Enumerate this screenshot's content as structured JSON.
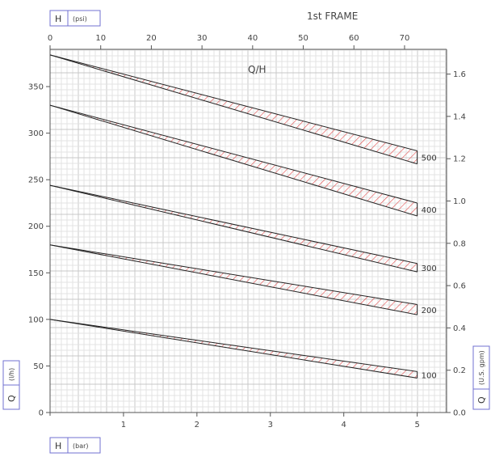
{
  "colors": {
    "grid_minor": "#e3e3e3",
    "grid_major": "#c8c8c8",
    "axis": "#555555",
    "curve": "#222222",
    "hatch": "#e34a4a",
    "box_border": "#7070d0"
  },
  "chart_data": {
    "type": "line",
    "title": "1st FRAME",
    "plot_label": "Q/H",
    "grid": true,
    "axes": {
      "left": {
        "label_symbol": "Q",
        "label_unit": "(l/h)",
        "ticks": [
          0,
          50,
          100,
          150,
          200,
          250,
          300,
          350
        ],
        "range": [
          0,
          390
        ]
      },
      "right": {
        "label_symbol": "Q",
        "label_unit": "(U.S. gpm)",
        "ticks": [
          "0.0",
          "0.2",
          "0.4",
          "0.6",
          "0.8",
          "1.0",
          "1.2",
          "1.4",
          "1.6"
        ],
        "range": [
          0,
          1.717
        ]
      },
      "bottom": {
        "label_symbol": "H",
        "label_unit": "(bar)",
        "ticks": [
          1,
          2,
          3,
          4,
          5
        ],
        "range": [
          0,
          5.4
        ]
      },
      "top": {
        "label_symbol": "H",
        "label_unit": "(psi)",
        "ticks": [
          0,
          10,
          20,
          30,
          40,
          50,
          60,
          70
        ],
        "range": [
          0,
          78.3
        ]
      }
    },
    "series": [
      {
        "name": "100",
        "x": [
          0,
          5
        ],
        "upper": [
          100,
          44
        ],
        "lower": [
          100,
          37
        ]
      },
      {
        "name": "200",
        "x": [
          0,
          5
        ],
        "upper": [
          180,
          116
        ],
        "lower": [
          180,
          105
        ]
      },
      {
        "name": "300",
        "x": [
          0,
          5
        ],
        "upper": [
          244,
          160
        ],
        "lower": [
          244,
          151
        ]
      },
      {
        "name": "400",
        "x": [
          0,
          5
        ],
        "upper": [
          330,
          225
        ],
        "lower": [
          330,
          211
        ]
      },
      {
        "name": "500",
        "x": [
          0,
          5
        ],
        "upper": [
          384,
          281
        ],
        "lower": [
          384,
          267
        ]
      }
    ]
  }
}
